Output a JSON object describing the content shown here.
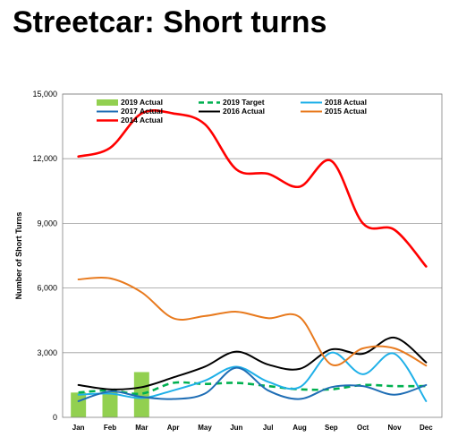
{
  "page": {
    "title": "Streetcar: Short turns"
  },
  "chart_data": {
    "type": "line",
    "ylabel": "Number of Short Turns",
    "xlabel": "",
    "ylim": [
      0,
      15000
    ],
    "yticks": [
      0,
      3000,
      6000,
      9000,
      12000,
      15000
    ],
    "ytick_labels": [
      "0",
      "3,000",
      "6,000",
      "9,000",
      "12,000",
      "15,000"
    ],
    "grid": true,
    "legend": "top",
    "categories": [
      "Jan",
      "Feb",
      "Mar",
      "Apr",
      "May",
      "Jun",
      "Jul",
      "Aug",
      "Sep",
      "Oct",
      "Nov",
      "Dec"
    ],
    "series": [
      {
        "name": "2019 Actual",
        "kind": "bar",
        "color": "#92D050",
        "values": [
          1150,
          1180,
          2100,
          null,
          null,
          null,
          null,
          null,
          null,
          null,
          null,
          null
        ]
      },
      {
        "name": "2019 Target",
        "kind": "dashed",
        "color": "#00B050",
        "values": [
          1150,
          1250,
          1100,
          1600,
          1550,
          1600,
          1450,
          1300,
          1300,
          1500,
          1450,
          1450
        ]
      },
      {
        "name": "2018 Actual",
        "kind": "line",
        "color": "#1FB0E8",
        "values": [
          1050,
          1100,
          900,
          1250,
          1700,
          2350,
          1650,
          1400,
          3000,
          2000,
          2950,
          750
        ]
      },
      {
        "name": "2017 Actual",
        "kind": "line",
        "color": "#1F6EB5",
        "values": [
          750,
          1200,
          950,
          850,
          1100,
          2300,
          1250,
          850,
          1400,
          1450,
          1050,
          1500
        ]
      },
      {
        "name": "2016 Actual",
        "kind": "line",
        "color": "#000000",
        "values": [
          1500,
          1300,
          1400,
          1850,
          2350,
          3050,
          2450,
          2250,
          3150,
          2950,
          3700,
          2550
        ]
      },
      {
        "name": "2015 Actual",
        "kind": "line",
        "color": "#E87A1E",
        "values": [
          6400,
          6450,
          5800,
          4600,
          4700,
          4900,
          4600,
          4650,
          2450,
          3200,
          3200,
          2400
        ]
      },
      {
        "name": "2014 Actual",
        "kind": "thick",
        "color": "#FF0000",
        "values": [
          12100,
          12500,
          14100,
          14100,
          13600,
          11500,
          11300,
          10700,
          11900,
          9000,
          8700,
          7000
        ]
      }
    ]
  }
}
